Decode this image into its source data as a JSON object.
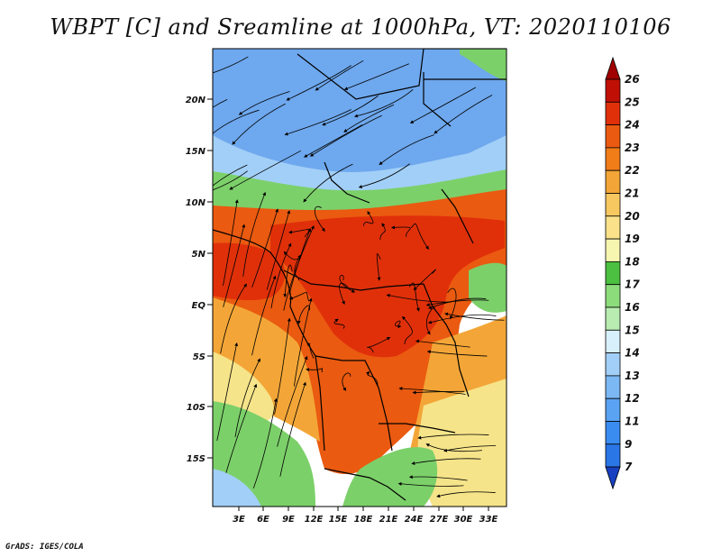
{
  "title": "WBPT [C] and Sreamline at 1000hPa, VT: 2020110106",
  "footer": "GrADS: IGES/COLA",
  "map": {
    "lat_ticks": [
      "20N",
      "15N",
      "10N",
      "5N",
      "EQ",
      "5S",
      "10S",
      "15S"
    ],
    "lon_ticks": [
      "3E",
      "6E",
      "9E",
      "12E",
      "15E",
      "18E",
      "21E",
      "24E",
      "27E",
      "30E",
      "33E"
    ]
  },
  "colorbar": {
    "levels": [
      "7",
      "9",
      "11",
      "12",
      "13",
      "14",
      "15",
      "16",
      "17",
      "18",
      "19",
      "20",
      "21",
      "22",
      "23",
      "24",
      "25",
      "26"
    ],
    "colors": [
      "#1f5fd8",
      "#2b76e6",
      "#3b8cf0",
      "#5aa2f2",
      "#7bb8f4",
      "#a2cff7",
      "#d8f0fb",
      "#b8ecb0",
      "#8cdc7c",
      "#4cc040",
      "#f6f6b0",
      "#fbe28a",
      "#f8c860",
      "#f3a637",
      "#f07d18",
      "#ea5a10",
      "#e0300a",
      "#c01005"
    ],
    "under_color": "#1840c0",
    "over_color": "#a00000"
  },
  "field_colors": {
    "cold": "#6ea8ee",
    "cool": "#a2cff7",
    "green": "#7cd06a",
    "yellow": "#f6e48a",
    "orange": "#f3a637",
    "warm": "#ea5a10",
    "hot": "#e0300a"
  }
}
